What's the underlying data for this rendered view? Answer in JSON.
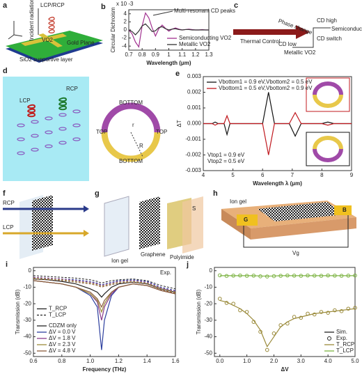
{
  "panels": {
    "a": {
      "label": "a",
      "beam": "LCP/RCP",
      "incident": "Incident radiation",
      "vo2": "VO2",
      "plane": "Gold Plane",
      "substrate": "SiO2 supportive layer"
    },
    "c": {
      "label": "c",
      "control": "Thermal Control",
      "change": "Phase change",
      "high": "CD high",
      "semi": "Semiconducting VO2",
      "switch": "CD switch",
      "low": "CD low",
      "metal": "Metallic VO2"
    },
    "d": {
      "label": "d",
      "lcp": "LCP",
      "rcp": "RCP",
      "bottom1": "BOTTOM",
      "bottom2": "BOTTOM",
      "top1": "TOP",
      "top2": "TOP",
      "r": "r",
      "R": "R"
    },
    "f": {
      "label": "f",
      "rcp": "RCP",
      "lcp": "LCP"
    },
    "g": {
      "label": "g",
      "gel": "Ion gel",
      "graphene": "Graphene",
      "polyimide": "Polyimide",
      "s": "S"
    },
    "h": {
      "label": "h",
      "gel": "Ion gel",
      "b": "B",
      "g": "G",
      "vg": "Vg"
    }
  },
  "chart_data": [
    {
      "label": "b",
      "type": "line",
      "x_label": "Wavelength (μm)",
      "y_label": "Circular Dichroism",
      "y_scale": "x 10 -3",
      "annotation": "Multi-resonant CD peaks",
      "x": [
        0.7,
        0.725,
        0.75,
        0.775,
        0.8,
        0.825,
        0.85,
        0.875,
        0.9,
        0.925,
        0.95,
        0.975,
        1,
        1.025,
        1.05,
        1.075,
        1.1,
        1.125,
        1.15,
        1.175,
        1.2,
        1.225,
        1.25,
        1.275,
        1.3
      ],
      "xlim": [
        0.7,
        1.3
      ],
      "xticks": [
        0.7,
        0.8,
        0.9,
        1,
        1.1,
        1.2,
        1.3
      ],
      "ylim": [
        -5,
        5
      ],
      "yticks": [
        -4,
        -2,
        0,
        2,
        4
      ],
      "legend": "lower right",
      "series": [
        {
          "name": "Semiconducting VO2",
          "color": "#a0308f",
          "values": [
            0,
            -1,
            -3,
            -4.2,
            1,
            4.2,
            3,
            0.5,
            -1.5,
            0.3,
            1.2,
            0.4,
            -0.3,
            0.2,
            0.5,
            0.2,
            0,
            0.1,
            0.2,
            0.1,
            0,
            0,
            0.1,
            0,
            0
          ]
        },
        {
          "name": "Metallic VO2",
          "color": "#333333",
          "values": [
            0,
            -0.4,
            -1.2,
            -0.3,
            1,
            1.5,
            0.6,
            -0.4,
            -0.2,
            0.6,
            0.8,
            0.3,
            0,
            0.2,
            0.3,
            0.1,
            0,
            0.1,
            0.1,
            0,
            0,
            0,
            0,
            0,
            0
          ]
        }
      ]
    },
    {
      "label": "e",
      "type": "line",
      "x_label": "Wavelength λ (μm)",
      "y_label": "ΔT",
      "annotations": [
        "Vtop1 = 0.9 eV",
        "Vtop2 = 0.5 eV"
      ],
      "x": [
        4,
        4.3,
        4.4,
        4.5,
        4.7,
        4.8,
        4.9,
        5.5,
        6.0,
        6.2,
        6.4,
        6.9,
        7.1,
        7.3,
        8.0,
        8.2,
        8.4,
        9
      ],
      "xlim": [
        4,
        9
      ],
      "xticks": [
        4,
        5,
        6,
        7,
        8,
        9
      ],
      "ylim": [
        -0.003,
        0.003
      ],
      "yticks": [
        -0.003,
        -0.002,
        -0.001,
        {
          "value": 0,
          "label": "0.000"
        },
        0.001,
        0.002,
        0.003
      ],
      "legend": "upper left",
      "series": [
        {
          "name": "Vbottom1 = 0.9 eV,Vbottom2 = 0.5 eV",
          "color": "#111111",
          "values": [
            0,
            0,
            0.0001,
            0,
            0,
            -0.0007,
            0,
            0,
            0,
            0.002,
            0,
            0,
            -0.0008,
            0,
            0,
            0.0001,
            0,
            0
          ]
        },
        {
          "name": "Vbottom1 = 0.5 eV,Vbottom2 = 0.9 eV",
          "color": "#c0181e",
          "values": [
            0,
            0,
            -0.0001,
            0,
            0,
            0.0005,
            0,
            0,
            0,
            -0.002,
            0,
            0,
            0.0007,
            0,
            0,
            -0.0001,
            0,
            0
          ]
        }
      ]
    },
    {
      "label": "i",
      "type": "line",
      "x_label": "Frequency (THz)",
      "y_label": "Transmission (dB)",
      "annotation": "Exp.",
      "line_styles": [
        "T_RCP",
        "T_LCP"
      ],
      "x": [
        0.6,
        0.7,
        0.8,
        0.9,
        1.0,
        1.05,
        1.08,
        1.1,
        1.15,
        1.2,
        1.3,
        1.4,
        1.5,
        1.6
      ],
      "xlim": [
        0.6,
        1.6
      ],
      "xticks": [
        0.6,
        0.8,
        {
          "value": 1,
          "label": "1.0"
        },
        1.2,
        1.4,
        1.6
      ],
      "ylim": [
        -52,
        2
      ],
      "yticks": [
        -50,
        -40,
        -30,
        -20,
        -10,
        0
      ],
      "legend": "lower left",
      "series": [
        {
          "name": "CDZM only",
          "color": "#222222",
          "values": [
            -5,
            -5.5,
            -6.5,
            -8,
            -11,
            -13,
            -16,
            -14,
            -10,
            -8,
            -7,
            -8,
            -11,
            -13
          ],
          "lcp_values": [
            -3,
            -3.5,
            -4,
            -4.5,
            -5.5,
            -6.5,
            -7.5,
            -7,
            -6,
            -5.5,
            -5,
            -6,
            -9,
            -11
          ]
        },
        {
          "name": "ΔV = 0.0 V",
          "color": "#2c3e9e",
          "values": [
            -6,
            -7,
            -8,
            -10,
            -15,
            -22,
            -48,
            -30,
            -15,
            -10,
            -8,
            -9,
            -12,
            -14
          ],
          "lcp_values": [
            -4,
            -4.5,
            -5,
            -5.5,
            -6.5,
            -7.5,
            -8.5,
            -8,
            -7,
            -6,
            -5.5,
            -6.5,
            -10,
            -12
          ]
        },
        {
          "name": "ΔV = 1.8 V",
          "color": "#8a3c8a",
          "values": [
            -6,
            -7,
            -8,
            -10,
            -14,
            -19,
            -30,
            -22,
            -14,
            -10,
            -8,
            -9,
            -12,
            -14
          ],
          "lcp_values": [
            -4,
            -4.5,
            -5,
            -6,
            -7,
            -8,
            -9,
            -8.5,
            -7.5,
            -6.5,
            -6,
            -7,
            -10.5,
            -12.5
          ]
        },
        {
          "name": "ΔV = 2.3 V",
          "color": "#9a8a3a",
          "values": [
            -6,
            -7,
            -8,
            -10,
            -14,
            -18,
            -25,
            -20,
            -13,
            -10,
            -8,
            -9,
            -12,
            -14
          ],
          "lcp_values": [
            -4.5,
            -5,
            -5.5,
            -6.5,
            -7.5,
            -8.5,
            -9.5,
            -9,
            -8,
            -7,
            -6.5,
            -7.5,
            -11,
            -13
          ]
        },
        {
          "name": "ΔV = 4.8 V",
          "color": "#8a5a3a",
          "values": [
            -6,
            -7,
            -8,
            -10,
            -13,
            -17,
            -22,
            -18,
            -13,
            -10,
            -8,
            -9,
            -12,
            -14
          ],
          "lcp_values": [
            -5,
            -5.5,
            -6,
            -7,
            -8,
            -9,
            -10,
            -9.5,
            -8.5,
            -7.5,
            -7,
            -8,
            -11.5,
            -13.5
          ]
        }
      ]
    },
    {
      "label": "j",
      "type": "line",
      "x_label": "ΔV",
      "y_label": "Transmission (dB)",
      "method_labels": [
        "Sim.",
        "Exp."
      ],
      "x": [
        0,
        0.25,
        0.5,
        0.75,
        1,
        1.25,
        1.5,
        1.75,
        2,
        2.25,
        2.5,
        2.75,
        3,
        3.25,
        3.5,
        3.75,
        4,
        4.25,
        4.5,
        4.75,
        5
      ],
      "xlim": [
        -0.2,
        5
      ],
      "xticks": [
        {
          "value": 0,
          "label": "0.0"
        },
        {
          "value": 1,
          "label": "1.0"
        },
        {
          "value": 2,
          "label": "2.0"
        },
        {
          "value": 3,
          "label": "3.0"
        },
        {
          "value": 4,
          "label": "4.0"
        },
        {
          "value": 5,
          "label": "5.0"
        }
      ],
      "ylim": [
        -52,
        2
      ],
      "yticks": [
        -50,
        -40,
        -30,
        -20,
        -10,
        0
      ],
      "legend": "lower right",
      "series": [
        {
          "name": "T_RCP",
          "color": "#9a8a3a",
          "values": [
            -18,
            -19,
            -21,
            -23,
            -26,
            -30,
            -36,
            -46,
            -40,
            -34,
            -31,
            -29,
            -28,
            -27,
            -26,
            -25.5,
            -25,
            -24.5,
            -24,
            -23.5,
            -23
          ],
          "exp_values": [
            -17,
            -19.5,
            -20,
            -24,
            -25,
            -31,
            -37,
            -48,
            -38,
            -33,
            -32,
            -28,
            -28.5,
            -26,
            -26.5,
            -25,
            -25.5,
            -24,
            -24.5,
            -23,
            -22.5
          ]
        },
        {
          "name": "T_LCP",
          "color": "#7cb342",
          "values": [
            -3,
            -3,
            -3,
            -3,
            -3,
            -3,
            -3.2,
            -3.3,
            -3.2,
            -3,
            -3,
            -3,
            -3,
            -3,
            -3,
            -3,
            -3,
            -3,
            -3,
            -3,
            -3
          ],
          "exp_values": [
            -2.8,
            -3.2,
            -3,
            -2.9,
            -3.1,
            -3,
            -3.4,
            -3.5,
            -3.3,
            -3.1,
            -2.9,
            -3,
            -3.1,
            -2.9,
            -3,
            -3.1,
            -2.9,
            -3,
            -3.1,
            -3,
            -2.9
          ]
        }
      ]
    }
  ]
}
